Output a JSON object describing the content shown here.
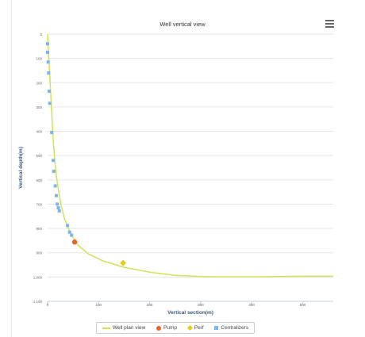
{
  "chart_data": {
    "type": "line",
    "title": "Well vertical view",
    "xlabel": "Vertical section(m)",
    "ylabel": "Vertical depth(m)",
    "xlim": [
      0,
      560
    ],
    "ylim": [
      0,
      1100
    ],
    "x_ticks": [
      0,
      100,
      200,
      300,
      400,
      500
    ],
    "x_tick_labels": [
      "0",
      "100",
      "200",
      "300",
      "400",
      "500"
    ],
    "y_ticks": [
      0,
      100,
      200,
      300,
      400,
      500,
      600,
      700,
      800,
      900,
      1000,
      1100
    ],
    "y_tick_labels": [
      "0",
      "100",
      "200",
      "300",
      "400",
      "500",
      "600",
      "700",
      "800",
      "900",
      "1,000",
      "1,100"
    ],
    "y_reversed": true,
    "grid": "horizontal",
    "legend_position": "bottom-center",
    "series": [
      {
        "name": "Well plan view",
        "kind": "line",
        "color": "#d4e157",
        "points": [
          [
            0,
            0
          ],
          [
            1,
            50
          ],
          [
            3,
            120
          ],
          [
            5,
            200
          ],
          [
            7,
            280
          ],
          [
            9,
            360
          ],
          [
            11,
            440
          ],
          [
            14,
            520
          ],
          [
            17,
            580
          ],
          [
            21,
            640
          ],
          [
            26,
            700
          ],
          [
            33,
            760
          ],
          [
            45,
            820
          ],
          [
            60,
            870
          ],
          [
            80,
            905
          ],
          [
            110,
            935
          ],
          [
            150,
            960
          ],
          [
            200,
            980
          ],
          [
            250,
            993
          ],
          [
            300,
            998
          ],
          [
            350,
            999
          ],
          [
            400,
            999
          ],
          [
            450,
            998
          ],
          [
            500,
            997
          ],
          [
            560,
            997
          ]
        ]
      },
      {
        "name": "Pump",
        "kind": "marker",
        "marker": "circle",
        "color": "#e8632c",
        "points": [
          [
            53,
            856
          ]
        ]
      },
      {
        "name": "Perf",
        "kind": "marker",
        "marker": "diamond",
        "color": "#e3cc1b",
        "points": [
          [
            148,
            942
          ]
        ]
      },
      {
        "name": "Centralizers",
        "kind": "marker",
        "marker": "square",
        "color": "#7cb5ec",
        "points": [
          [
            0,
            40
          ],
          [
            0,
            75
          ],
          [
            1,
            115
          ],
          [
            2,
            160
          ],
          [
            3,
            235
          ],
          [
            4,
            285
          ],
          [
            8,
            405
          ],
          [
            11,
            520
          ],
          [
            12,
            565
          ],
          [
            15,
            625
          ],
          [
            17,
            665
          ],
          [
            19,
            700
          ],
          [
            21,
            715
          ],
          [
            23,
            728
          ],
          [
            39,
            788
          ],
          [
            43,
            815
          ],
          [
            47,
            828
          ]
        ]
      }
    ]
  }
}
